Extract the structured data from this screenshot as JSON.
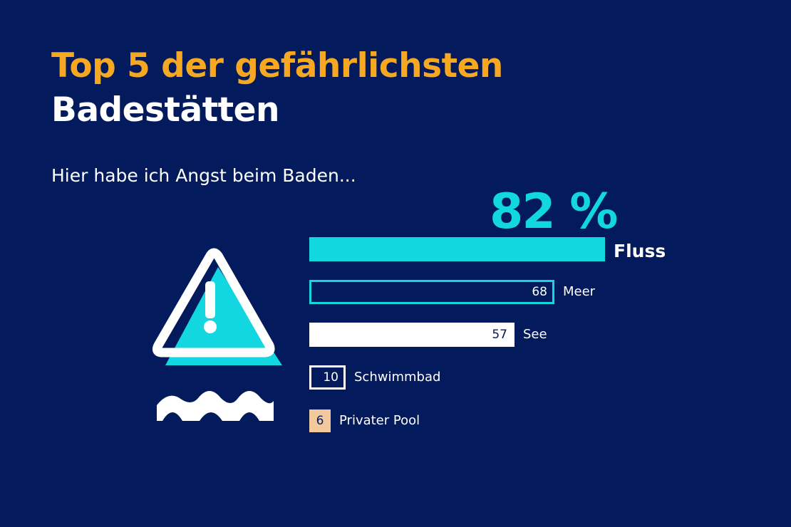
{
  "title": {
    "line1": "Top 5 der gefährlichsten",
    "line2": "Badestätten"
  },
  "subtitle": "Hier habe ich Angst beim Baden...",
  "icons": {
    "warning": "warning-triangle-icon",
    "water": "water-waves-icon"
  },
  "colors": {
    "background": "#031b5c",
    "accent_orange": "#f7a823",
    "cyan": "#12d7e0",
    "white": "#ffffff",
    "peach": "#f2c89d"
  },
  "chart_data": {
    "type": "bar",
    "orientation": "horizontal",
    "unit": "%",
    "categories": [
      "Fluss",
      "Meer",
      "See",
      "Schwimmbad",
      "Privater Pool"
    ],
    "values": [
      82,
      68,
      57,
      10,
      6
    ],
    "value_labels": [
      "82 %",
      "68",
      "57",
      "10",
      "6"
    ],
    "bar_styles": [
      "cyan-filled",
      "cyan-outline",
      "white-filled",
      "white-outline",
      "peach-filled"
    ]
  }
}
